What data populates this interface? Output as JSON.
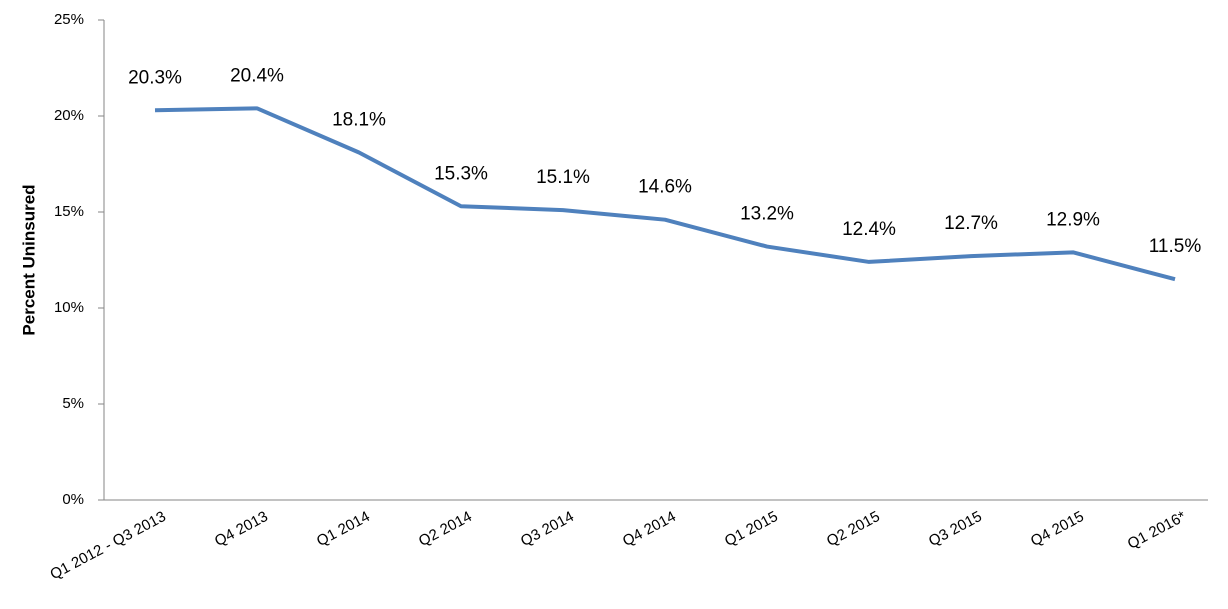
{
  "chart_data": {
    "type": "line",
    "y_label": "Percent Uninsured",
    "categories": [
      "Q1 2012 - Q3 2013",
      "Q4 2013",
      "Q1 2014",
      "Q2 2014",
      "Q3 2014",
      "Q4 2014",
      "Q1 2015",
      "Q2 2015",
      "Q3 2015",
      "Q4 2015",
      "Q1 2016*"
    ],
    "series": [
      {
        "color": "#4f81bd",
        "values": [
          20.3,
          20.4,
          18.1,
          15.3,
          15.1,
          14.6,
          13.2,
          12.4,
          12.7,
          12.9,
          11.5
        ],
        "value_labels": [
          "20.3%",
          "20.4%",
          "18.1%",
          "15.3%",
          "15.1%",
          "14.6%",
          "13.2%",
          "12.4%",
          "12.7%",
          "12.9%",
          "11.5%"
        ]
      }
    ],
    "ylim": [
      0,
      25
    ],
    "yticks": [
      {
        "value": 0,
        "label": "0%"
      },
      {
        "value": 5,
        "label": "5%"
      },
      {
        "value": 10,
        "label": "10%"
      },
      {
        "value": 15,
        "label": "15%"
      },
      {
        "value": 20,
        "label": "20%"
      },
      {
        "value": 25,
        "label": "25%"
      }
    ],
    "grid": false
  }
}
